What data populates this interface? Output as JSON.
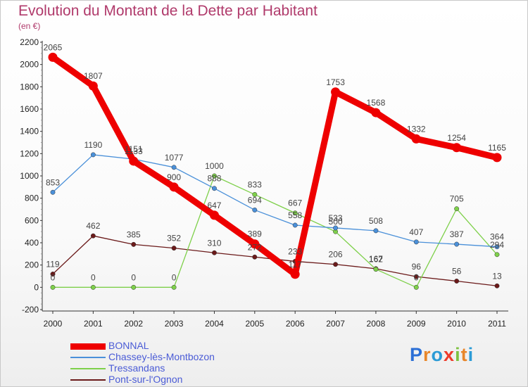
{
  "chart_data": {
    "type": "line",
    "title": "Evolution du Montant de la Dette par Habitant",
    "subtitle": "(en €)",
    "x": [
      "2000",
      "2001",
      "2002",
      "2003",
      "2004",
      "2005",
      "2006",
      "2007",
      "2008",
      "2009",
      "2010",
      "2011"
    ],
    "yticks": [
      "2200",
      "2000",
      "1800",
      "1600",
      "1400",
      "1200",
      "1000",
      "800",
      "600",
      "400",
      "200",
      "0",
      "-200"
    ],
    "ylim": [
      -200,
      2200
    ],
    "grid": false,
    "legend_position": "bottom-left",
    "series": [
      {
        "name": "BONNAL",
        "color": "#ee0000",
        "values": [
          2065,
          1807,
          1133,
          900,
          647,
          389,
          117,
          1753,
          1568,
          1332,
          1254,
          1165
        ]
      },
      {
        "name": "Chassey-lès-Montbozon",
        "color": "#4a90d9",
        "values": [
          853,
          1190,
          1151,
          1077,
          888,
          694,
          558,
          533,
          508,
          407,
          387,
          364
        ]
      },
      {
        "name": "Tressandans",
        "color": "#7ed04a",
        "values": [
          0,
          0,
          0,
          0,
          1000,
          833,
          667,
          500,
          162,
          0,
          705,
          294
        ]
      },
      {
        "name": "Pont-sur-l'Ognon",
        "color": "#6b1a1a",
        "values": [
          119,
          462,
          385,
          352,
          310,
          272,
          233,
          206,
          167,
          96,
          56,
          13
        ]
      }
    ]
  },
  "logo": {
    "text": "Proxiti",
    "letters": [
      "P",
      "r",
      "o",
      "x",
      "i",
      "t",
      "i"
    ],
    "colors": [
      "#2b6fd6",
      "#e8862a",
      "#2b9bd6",
      "#ee3b2b",
      "#7ec242",
      "#e8862a",
      "#2b9bd6"
    ]
  }
}
